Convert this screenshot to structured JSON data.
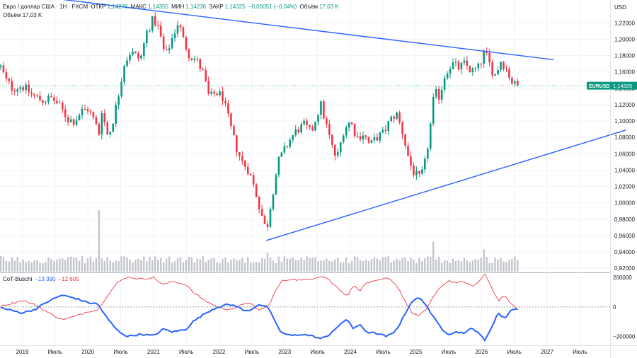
{
  "header": {
    "symbol": "Евро / доллар США · 1Н · FXCM",
    "open_label": "ОТКР",
    "open": "1,14278",
    "high_label": "МАКС",
    "high": "1,14355",
    "low_label": "МИН",
    "low": "1,14236",
    "close_label": "ЗАКР",
    "close": "1,14325",
    "change": "−0,00051 (−0,04%)",
    "volume_label": "Объём",
    "volume": "17,03 K"
  },
  "volume_pane": {
    "label": "Объём",
    "value": "17,03 K"
  },
  "currency": "USD",
  "price_badge": {
    "symbol": "EURUSD",
    "value": "1,14325",
    "color": "#089981"
  },
  "indicator": {
    "name": "CoT-Buschi",
    "blue_value": "−13 390",
    "red_value": "−12 605"
  },
  "colors": {
    "up": "#089981",
    "down": "#f23645",
    "trend": "#2962ff",
    "volume": "#c2c5cc"
  },
  "chart_data": {
    "type": "candlestick",
    "y_ticks": [
      "1,22000",
      "1,20000",
      "1,18000",
      "1,16000",
      "1,14000",
      "1,12000",
      "1,10000",
      "1,08000",
      "1,06000",
      "1,04000",
      "1,02000",
      "1,00000",
      "0,98000",
      "0,96000",
      "0,94000",
      "0,92000"
    ],
    "y_tick_values": [
      1.22,
      1.2,
      1.18,
      1.16,
      1.14,
      1.12,
      1.1,
      1.08,
      1.06,
      1.04,
      1.02,
      1.0,
      0.98,
      0.96,
      0.94,
      0.92
    ],
    "ylim": [
      0.915,
      1.248
    ],
    "x_labels": [
      "2019",
      "Июль",
      "2020",
      "Июль",
      "2021",
      "Июль",
      "2022",
      "Июль",
      "2023",
      "Июль",
      "2024",
      "Июль",
      "2025",
      "Июль",
      "2026",
      "Июль",
      "2027",
      "Июль"
    ],
    "x_label_values": [
      2019.0,
      2019.5,
      2020.0,
      2020.5,
      2021.0,
      2021.5,
      2022.0,
      2022.5,
      2023.0,
      2023.5,
      2024.0,
      2024.5,
      2025.0,
      2025.5,
      2026.0,
      2026.5,
      2027.0,
      2027.5
    ],
    "xlim": [
      2018.66,
      2027.96
    ],
    "price_path": [
      [
        2018.67,
        1.166
      ],
      [
        2018.75,
        1.15
      ],
      [
        2018.85,
        1.14
      ],
      [
        2019.0,
        1.143
      ],
      [
        2019.15,
        1.132
      ],
      [
        2019.3,
        1.125
      ],
      [
        2019.45,
        1.128
      ],
      [
        2019.55,
        1.12
      ],
      [
        2019.7,
        1.102
      ],
      [
        2019.8,
        1.1
      ],
      [
        2019.9,
        1.112
      ],
      [
        2020.0,
        1.115
      ],
      [
        2020.1,
        1.1
      ],
      [
        2020.17,
        1.085
      ],
      [
        2020.22,
        1.12
      ],
      [
        2020.28,
        1.082
      ],
      [
        2020.35,
        1.09
      ],
      [
        2020.45,
        1.125
      ],
      [
        2020.55,
        1.17
      ],
      [
        2020.65,
        1.185
      ],
      [
        2020.8,
        1.175
      ],
      [
        2020.9,
        1.21
      ],
      [
        2021.0,
        1.225
      ],
      [
        2021.08,
        1.212
      ],
      [
        2021.18,
        1.178
      ],
      [
        2021.3,
        1.205
      ],
      [
        2021.38,
        1.222
      ],
      [
        2021.45,
        1.2
      ],
      [
        2021.55,
        1.18
      ],
      [
        2021.65,
        1.175
      ],
      [
        2021.75,
        1.16
      ],
      [
        2021.85,
        1.128
      ],
      [
        2021.95,
        1.135
      ],
      [
        2022.05,
        1.13
      ],
      [
        2022.15,
        1.1
      ],
      [
        2022.25,
        1.07
      ],
      [
        2022.35,
        1.05
      ],
      [
        2022.45,
        1.04
      ],
      [
        2022.55,
        1.015
      ],
      [
        2022.65,
        0.985
      ],
      [
        2022.72,
        0.965
      ],
      [
        2022.8,
        1.005
      ],
      [
        2022.9,
        1.05
      ],
      [
        2023.0,
        1.065
      ],
      [
        2023.1,
        1.08
      ],
      [
        2023.2,
        1.09
      ],
      [
        2023.3,
        1.095
      ],
      [
        2023.4,
        1.085
      ],
      [
        2023.5,
        1.11
      ],
      [
        2023.55,
        1.12
      ],
      [
        2023.65,
        1.09
      ],
      [
        2023.75,
        1.06
      ],
      [
        2023.8,
        1.055
      ],
      [
        2023.9,
        1.09
      ],
      [
        2024.0,
        1.1
      ],
      [
        2024.1,
        1.08
      ],
      [
        2024.2,
        1.085
      ],
      [
        2024.3,
        1.07
      ],
      [
        2024.4,
        1.08
      ],
      [
        2024.5,
        1.085
      ],
      [
        2024.6,
        1.1
      ],
      [
        2024.7,
        1.11
      ],
      [
        2024.8,
        1.085
      ],
      [
        2024.9,
        1.05
      ],
      [
        2024.98,
        1.035
      ],
      [
        2025.05,
        1.03
      ],
      [
        2025.12,
        1.04
      ],
      [
        2025.2,
        1.08
      ],
      [
        2025.28,
        1.135
      ],
      [
        2025.36,
        1.13
      ],
      [
        2025.45,
        1.16
      ],
      [
        2025.55,
        1.17
      ],
      [
        2025.65,
        1.165
      ],
      [
        2025.75,
        1.17
      ],
      [
        2025.85,
        1.16
      ],
      [
        2025.95,
        1.165
      ],
      [
        2026.05,
        1.185
      ],
      [
        2026.12,
        1.17
      ],
      [
        2026.2,
        1.155
      ],
      [
        2026.3,
        1.175
      ],
      [
        2026.4,
        1.16
      ],
      [
        2026.48,
        1.145
      ],
      [
        2026.55,
        1.143
      ]
    ],
    "trendlines": [
      {
        "from": [
          2018.66,
          1.258
        ],
        "to": [
          2027.1,
          1.175
        ]
      },
      {
        "from": [
          2022.72,
          0.954
        ],
        "to": [
          2028.2,
          1.089
        ]
      }
    ],
    "volume_spikes": [
      [
        2020.17,
        1.0
      ],
      [
        2022.72,
        0.55
      ],
      [
        2025.28,
        0.8
      ],
      [
        2026.05,
        0.5
      ]
    ],
    "indicator_ylim": [
      -260000,
      230000
    ],
    "indicator_ticks": [
      "200000",
      "0",
      "−200000"
    ],
    "indicator_tick_values": [
      200000,
      0,
      -200000
    ],
    "cot_blue_path": [
      [
        2018.67,
        -5000
      ],
      [
        2018.8,
        -20000
      ],
      [
        2019.0,
        -40000
      ],
      [
        2019.2,
        -15000
      ],
      [
        2019.4,
        40000
      ],
      [
        2019.6,
        80000
      ],
      [
        2019.8,
        60000
      ],
      [
        2020.0,
        30000
      ],
      [
        2020.15,
        20000
      ],
      [
        2020.3,
        -80000
      ],
      [
        2020.45,
        -160000
      ],
      [
        2020.6,
        -200000
      ],
      [
        2020.8,
        -185000
      ],
      [
        2021.0,
        -195000
      ],
      [
        2021.15,
        -150000
      ],
      [
        2021.3,
        -170000
      ],
      [
        2021.5,
        -150000
      ],
      [
        2021.6,
        -100000
      ],
      [
        2021.8,
        -40000
      ],
      [
        2021.95,
        -5000
      ],
      [
        2022.1,
        15000
      ],
      [
        2022.25,
        10000
      ],
      [
        2022.4,
        -30000
      ],
      [
        2022.5,
        -15000
      ],
      [
        2022.6,
        20000
      ],
      [
        2022.75,
        -5000
      ],
      [
        2022.85,
        -100000
      ],
      [
        2022.95,
        -175000
      ],
      [
        2023.1,
        -195000
      ],
      [
        2023.25,
        -185000
      ],
      [
        2023.4,
        -195000
      ],
      [
        2023.55,
        -215000
      ],
      [
        2023.65,
        -200000
      ],
      [
        2023.75,
        -155000
      ],
      [
        2023.85,
        -120000
      ],
      [
        2023.95,
        -80000
      ],
      [
        2024.05,
        -150000
      ],
      [
        2024.15,
        -120000
      ],
      [
        2024.25,
        -170000
      ],
      [
        2024.4,
        -180000
      ],
      [
        2024.55,
        -200000
      ],
      [
        2024.65,
        -180000
      ],
      [
        2024.75,
        -120000
      ],
      [
        2024.85,
        -30000
      ],
      [
        2024.95,
        45000
      ],
      [
        2025.05,
        60000
      ],
      [
        2025.15,
        20000
      ],
      [
        2025.25,
        -60000
      ],
      [
        2025.4,
        -150000
      ],
      [
        2025.5,
        -185000
      ],
      [
        2025.6,
        -170000
      ],
      [
        2025.75,
        -175000
      ],
      [
        2025.85,
        -145000
      ],
      [
        2025.95,
        -170000
      ],
      [
        2026.05,
        -230000
      ],
      [
        2026.15,
        -140000
      ],
      [
        2026.25,
        -40000
      ],
      [
        2026.35,
        -80000
      ],
      [
        2026.45,
        -20000
      ],
      [
        2026.55,
        -13390
      ]
    ],
    "cot_red_path": [
      [
        2018.67,
        5000
      ],
      [
        2018.8,
        20000
      ],
      [
        2019.0,
        45000
      ],
      [
        2019.2,
        15000
      ],
      [
        2019.4,
        -40000
      ],
      [
        2019.6,
        -85000
      ],
      [
        2019.8,
        -65000
      ],
      [
        2020.0,
        -30000
      ],
      [
        2020.15,
        -20000
      ],
      [
        2020.3,
        80000
      ],
      [
        2020.45,
        165000
      ],
      [
        2020.6,
        205000
      ],
      [
        2020.8,
        190000
      ],
      [
        2021.0,
        200000
      ],
      [
        2021.15,
        150000
      ],
      [
        2021.3,
        175000
      ],
      [
        2021.5,
        150000
      ],
      [
        2021.6,
        100000
      ],
      [
        2021.8,
        40000
      ],
      [
        2021.95,
        5000
      ],
      [
        2022.1,
        -15000
      ],
      [
        2022.25,
        -10000
      ],
      [
        2022.4,
        30000
      ],
      [
        2022.5,
        15000
      ],
      [
        2022.6,
        -20000
      ],
      [
        2022.75,
        5000
      ],
      [
        2022.85,
        100000
      ],
      [
        2022.95,
        175000
      ],
      [
        2023.1,
        190000
      ],
      [
        2023.25,
        180000
      ],
      [
        2023.4,
        190000
      ],
      [
        2023.55,
        210000
      ],
      [
        2023.65,
        195000
      ],
      [
        2023.75,
        150000
      ],
      [
        2023.85,
        115000
      ],
      [
        2023.95,
        75000
      ],
      [
        2024.05,
        145000
      ],
      [
        2024.15,
        115000
      ],
      [
        2024.25,
        165000
      ],
      [
        2024.4,
        175000
      ],
      [
        2024.55,
        195000
      ],
      [
        2024.65,
        175000
      ],
      [
        2024.75,
        115000
      ],
      [
        2024.85,
        25000
      ],
      [
        2024.95,
        -45000
      ],
      [
        2025.05,
        -60000
      ],
      [
        2025.15,
        -20000
      ],
      [
        2025.25,
        60000
      ],
      [
        2025.4,
        145000
      ],
      [
        2025.5,
        180000
      ],
      [
        2025.6,
        165000
      ],
      [
        2025.75,
        170000
      ],
      [
        2025.85,
        140000
      ],
      [
        2025.95,
        165000
      ],
      [
        2026.05,
        225000
      ],
      [
        2026.15,
        140000
      ],
      [
        2026.25,
        40000
      ],
      [
        2026.35,
        80000
      ],
      [
        2026.45,
        20000
      ],
      [
        2026.55,
        -12605
      ]
    ]
  }
}
